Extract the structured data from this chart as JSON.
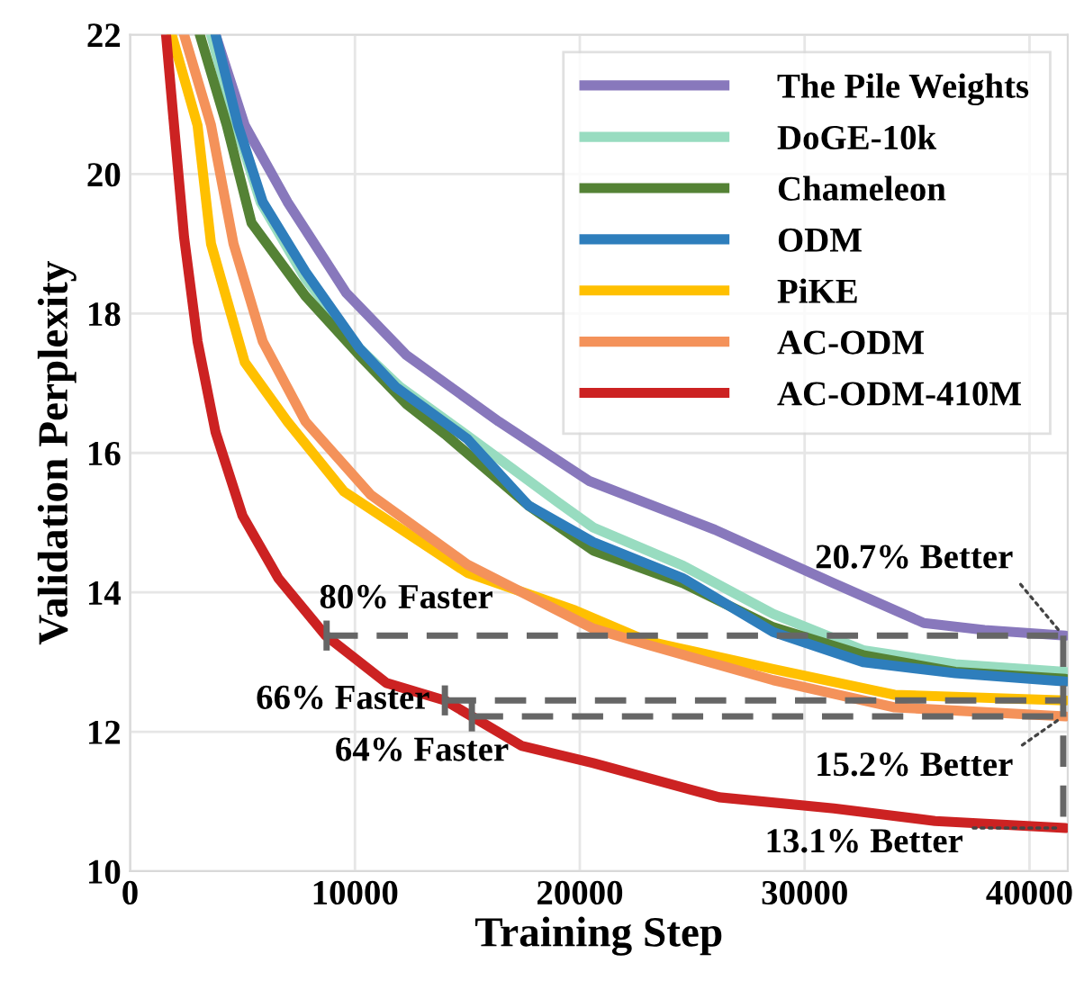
{
  "chart_data": {
    "type": "line",
    "xlabel": "Training Step",
    "ylabel": "Validation Perplexity",
    "xlim": [
      0,
      41700
    ],
    "ylim": [
      10,
      22
    ],
    "xticks": [
      0,
      10000,
      20000,
      30000,
      40000
    ],
    "yticks": [
      10,
      12,
      14,
      16,
      18,
      20,
      22
    ],
    "grid": true,
    "legend": "top right",
    "line_style": "solid",
    "marker": "none",
    "series": [
      {
        "name": "The Pile Weights",
        "color": "#8878bc",
        "x": [
          3800,
          5100,
          7000,
          9600,
          12300,
          16400,
          20400,
          26000,
          31300,
          35300,
          38000,
          41600
        ],
        "values": [
          22,
          20.7,
          19.6,
          18.3,
          17.4,
          16.45,
          15.6,
          14.9,
          14.13,
          13.56,
          13.46,
          13.38
        ]
      },
      {
        "name": "DoGE-10k",
        "color": "#98dcc0",
        "x": [
          3600,
          4700,
          5800,
          7800,
          10200,
          12000,
          15000,
          19000,
          20600,
          24600,
          28600,
          32600,
          36700,
          41600
        ],
        "values": [
          22,
          20.7,
          19.6,
          18.5,
          17.5,
          16.95,
          16.25,
          15.3,
          14.93,
          14.38,
          13.69,
          13.17,
          12.97,
          12.86
        ]
      },
      {
        "name": "Chameleon",
        "color": "#548235",
        "x": [
          3100,
          4300,
          5400,
          7800,
          10200,
          12300,
          14000,
          17700,
          20600,
          24600,
          28600,
          32600,
          36700,
          41600
        ],
        "values": [
          22,
          20.7,
          19.3,
          18.25,
          17.4,
          16.7,
          16.27,
          15.25,
          14.6,
          14.13,
          13.5,
          13.1,
          12.86,
          12.76
        ]
      },
      {
        "name": "ODM",
        "color": "#2e7ebc",
        "x": [
          3800,
          4800,
          5900,
          7800,
          10200,
          11800,
          15000,
          17700,
          20600,
          24600,
          28600,
          32600,
          36700,
          41600
        ],
        "values": [
          22,
          20.7,
          19.6,
          18.6,
          17.5,
          16.95,
          16.2,
          15.25,
          14.72,
          14.2,
          13.43,
          13.0,
          12.84,
          12.72
        ]
      },
      {
        "name": "PiKE",
        "color": "#ffc000",
        "x": [
          1850,
          3000,
          3600,
          5100,
          7000,
          9500,
          15000,
          19800,
          23000,
          28600,
          34000,
          41600
        ],
        "values": [
          22,
          20.7,
          19.0,
          17.3,
          16.45,
          15.45,
          14.28,
          13.74,
          13.3,
          12.9,
          12.53,
          12.45
        ]
      },
      {
        "name": "AC-ODM",
        "color": "#f4925a",
        "x": [
          2400,
          3600,
          4600,
          5900,
          7800,
          10700,
          15000,
          20600,
          23000,
          28600,
          34000,
          41600
        ],
        "values": [
          22,
          20.7,
          19.0,
          17.6,
          16.45,
          15.4,
          14.4,
          13.48,
          13.25,
          12.74,
          12.35,
          12.22
        ]
      },
      {
        "name": "AC-ODM-410M",
        "color": "#cc2222",
        "x": [
          1600,
          1900,
          2400,
          3000,
          3800,
          5000,
          6600,
          8700,
          11400,
          14000,
          17400,
          20600,
          26200,
          31300,
          35800,
          41600
        ],
        "values": [
          22,
          20.9,
          19.1,
          17.6,
          16.3,
          15.1,
          14.2,
          13.38,
          12.7,
          12.45,
          11.8,
          11.55,
          11.06,
          10.9,
          10.72,
          10.62
        ]
      },
      {
        "type": "line",
        "line_style": "dashed",
        "color": "#666666",
        "x": [
          8740,
          41500
        ],
        "values": [
          13.38,
          13.38
        ]
      },
      {
        "type": "line",
        "line_style": "dashed",
        "color": "#666666",
        "x": [
          14000,
          41500
        ],
        "values": [
          12.45,
          12.45
        ]
      },
      {
        "type": "line",
        "line_style": "dashed",
        "color": "#666666",
        "x": [
          15200,
          41500
        ],
        "values": [
          12.22,
          12.22
        ]
      },
      {
        "type": "line",
        "line_style": "dashed",
        "color": "#666666",
        "x": [
          41500,
          41500
        ],
        "values": [
          13.38,
          10.62
        ]
      }
    ],
    "annotations": [
      {
        "text": "80% Faster",
        "x": 8740,
        "y": 13.38
      },
      {
        "text": "66% Faster",
        "x": 14000,
        "y": 12.45
      },
      {
        "text": "64% Faster",
        "x": 15200,
        "y": 12.22
      },
      {
        "text": "20.7% Better",
        "x": 41500,
        "y": 13.38
      },
      {
        "text": "15.2% Better",
        "x": 41500,
        "y": 12.22
      },
      {
        "text": "13.1% Better",
        "x": 41500,
        "y": 10.62
      }
    ]
  }
}
